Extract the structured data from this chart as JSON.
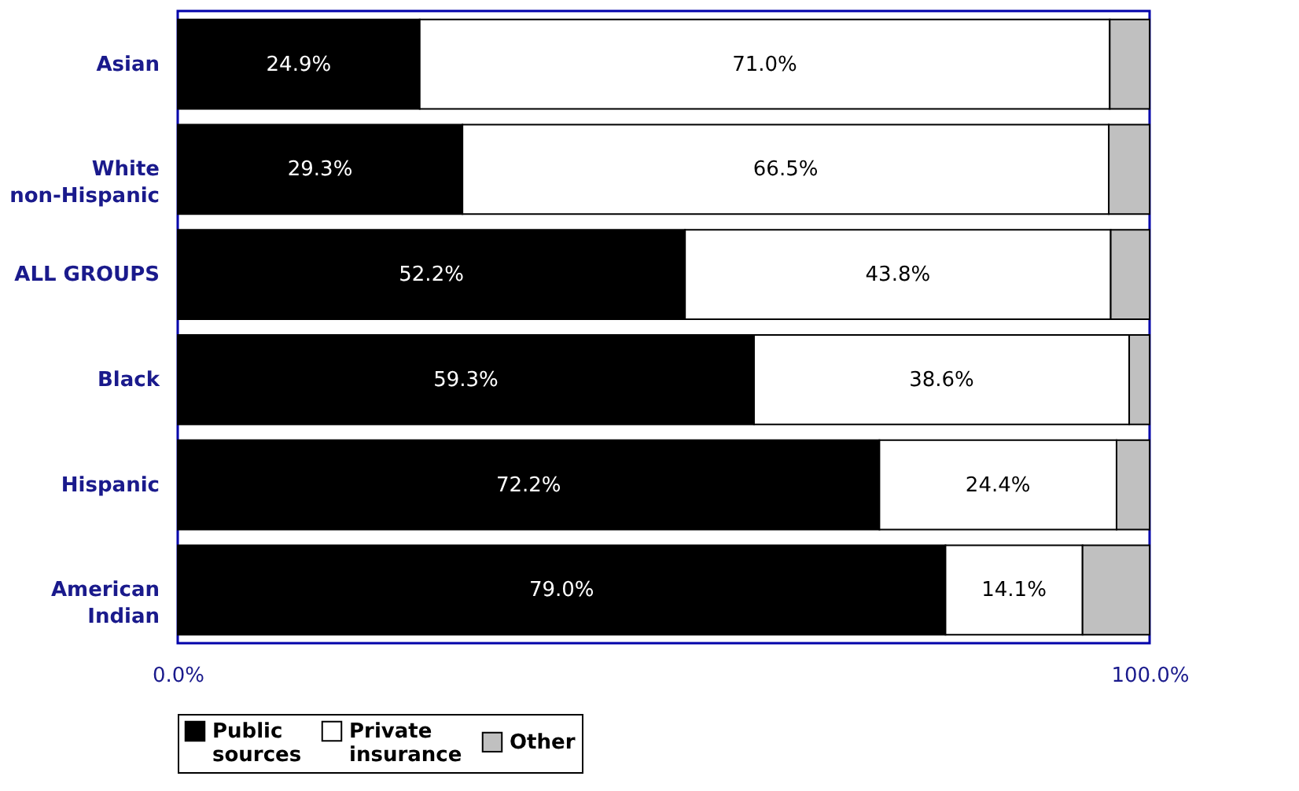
{
  "chart_data": {
    "type": "bar",
    "orientation": "horizontal",
    "stacked": true,
    "categories": [
      "Asian",
      "White non-Hispanic",
      "ALL GROUPS",
      "Black",
      "Hispanic",
      "American Indian"
    ],
    "series": [
      {
        "name": "Public sources",
        "color": "#000000",
        "values": [
          24.9,
          29.3,
          52.2,
          59.3,
          72.2,
          79.0
        ],
        "value_labels": [
          "24.9%",
          "29.3%",
          "52.2%",
          "59.3%",
          "72.2%",
          "79.0%"
        ]
      },
      {
        "name": "Private insurance",
        "color": "#ffffff",
        "values": [
          71.0,
          66.5,
          43.8,
          38.6,
          24.4,
          14.1
        ],
        "value_labels": [
          "71.0%",
          "66.5%",
          "43.8%",
          "38.6%",
          "24.4%",
          "14.1%"
        ]
      },
      {
        "name": "Other",
        "color": "#c0c0c0",
        "values": [
          4.1,
          4.2,
          4.0,
          2.1,
          3.4,
          6.9
        ],
        "value_labels": [
          null,
          null,
          null,
          null,
          null,
          null
        ]
      }
    ],
    "xlim": [
      0,
      100
    ],
    "xticks": [
      {
        "value": 0,
        "label": "0.0%"
      },
      {
        "value": 100,
        "label": "100.0%"
      }
    ],
    "legend": "bottom"
  }
}
